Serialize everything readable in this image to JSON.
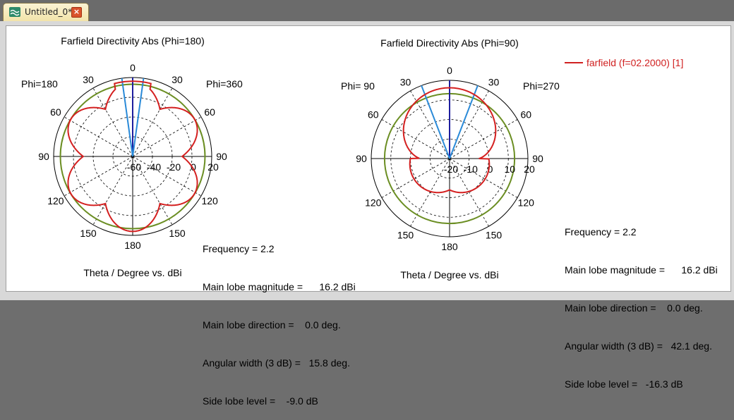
{
  "tab": {
    "title": "Untitled_0*",
    "close_glyph": "×",
    "icon": "wave-icon"
  },
  "legend": {
    "label": "farfield (f=02.2000) [1]",
    "color": "#d02020"
  },
  "colors": {
    "pattern": "#d42020",
    "ring": "#6b8e23",
    "beam": "#2a8ad8",
    "axis": "#1e1e9e"
  },
  "plot1": {
    "title": "Farfield Directivity Abs (Phi=180)",
    "phi_left": "Phi=180",
    "phi_right": "Phi=360",
    "angle_labels": [
      "0",
      "30",
      "30",
      "60",
      "60",
      "90",
      "90",
      "120",
      "120",
      "150",
      "150",
      "180"
    ],
    "radial_labels": [
      "-60",
      "-40",
      "-20",
      "0",
      "20"
    ],
    "footer": "Theta / Degree vs. dBi",
    "info": {
      "frequency": "Frequency = 2.2",
      "magnitude": "Main lobe magnitude =      16.2 dBi",
      "direction": "Main lobe direction =    0.0 deg.",
      "width": "Angular width (3 dB) =   15.8 deg.",
      "sidelobe": "Side lobe level =    -9.0 dB"
    }
  },
  "plot2": {
    "title": "Farfield Directivity Abs (Phi=90)",
    "phi_left": "Phi= 90",
    "phi_right": "Phi=270",
    "angle_labels": [
      "0",
      "30",
      "30",
      "60",
      "60",
      "90",
      "90",
      "120",
      "120",
      "150",
      "150",
      "180"
    ],
    "radial_labels": [
      "-20",
      "-10",
      "0",
      "10",
      "20"
    ],
    "footer": "Theta / Degree vs. dBi",
    "info": {
      "frequency": "Frequency = 2.2",
      "magnitude": "Main lobe magnitude =      16.2 dBi",
      "direction": "Main lobe direction =    0.0 deg.",
      "width": "Angular width (3 dB) =   42.1 deg.",
      "sidelobe": "Side lobe level =   -16.3 dB"
    }
  },
  "chart_data": [
    {
      "type": "polar",
      "title": "Farfield Directivity Abs (Phi=180)",
      "xlabel": "Theta / Degree vs. dBi",
      "radial_range": [
        -60,
        20
      ],
      "radial_ticks": [
        -60,
        -40,
        -20,
        0,
        20
      ],
      "series": [
        {
          "name": "farfield (f=02.2000) [1]"
        }
      ],
      "main_lobe_dBi": 16.2,
      "main_lobe_direction_deg": 0.0,
      "angular_width_3db_deg": 15.8,
      "side_lobe_level_dB": -9.0
    },
    {
      "type": "polar",
      "title": "Farfield Directivity Abs (Phi=90)",
      "xlabel": "Theta / Degree vs. dBi",
      "radial_range": [
        -20,
        20
      ],
      "radial_ticks": [
        -20,
        -10,
        0,
        10,
        20
      ],
      "series": [
        {
          "name": "farfield (f=02.2000) [1]"
        }
      ],
      "main_lobe_dBi": 16.2,
      "main_lobe_direction_deg": 0.0,
      "angular_width_3db_deg": 42.1,
      "side_lobe_level_dB": -16.3
    }
  ]
}
